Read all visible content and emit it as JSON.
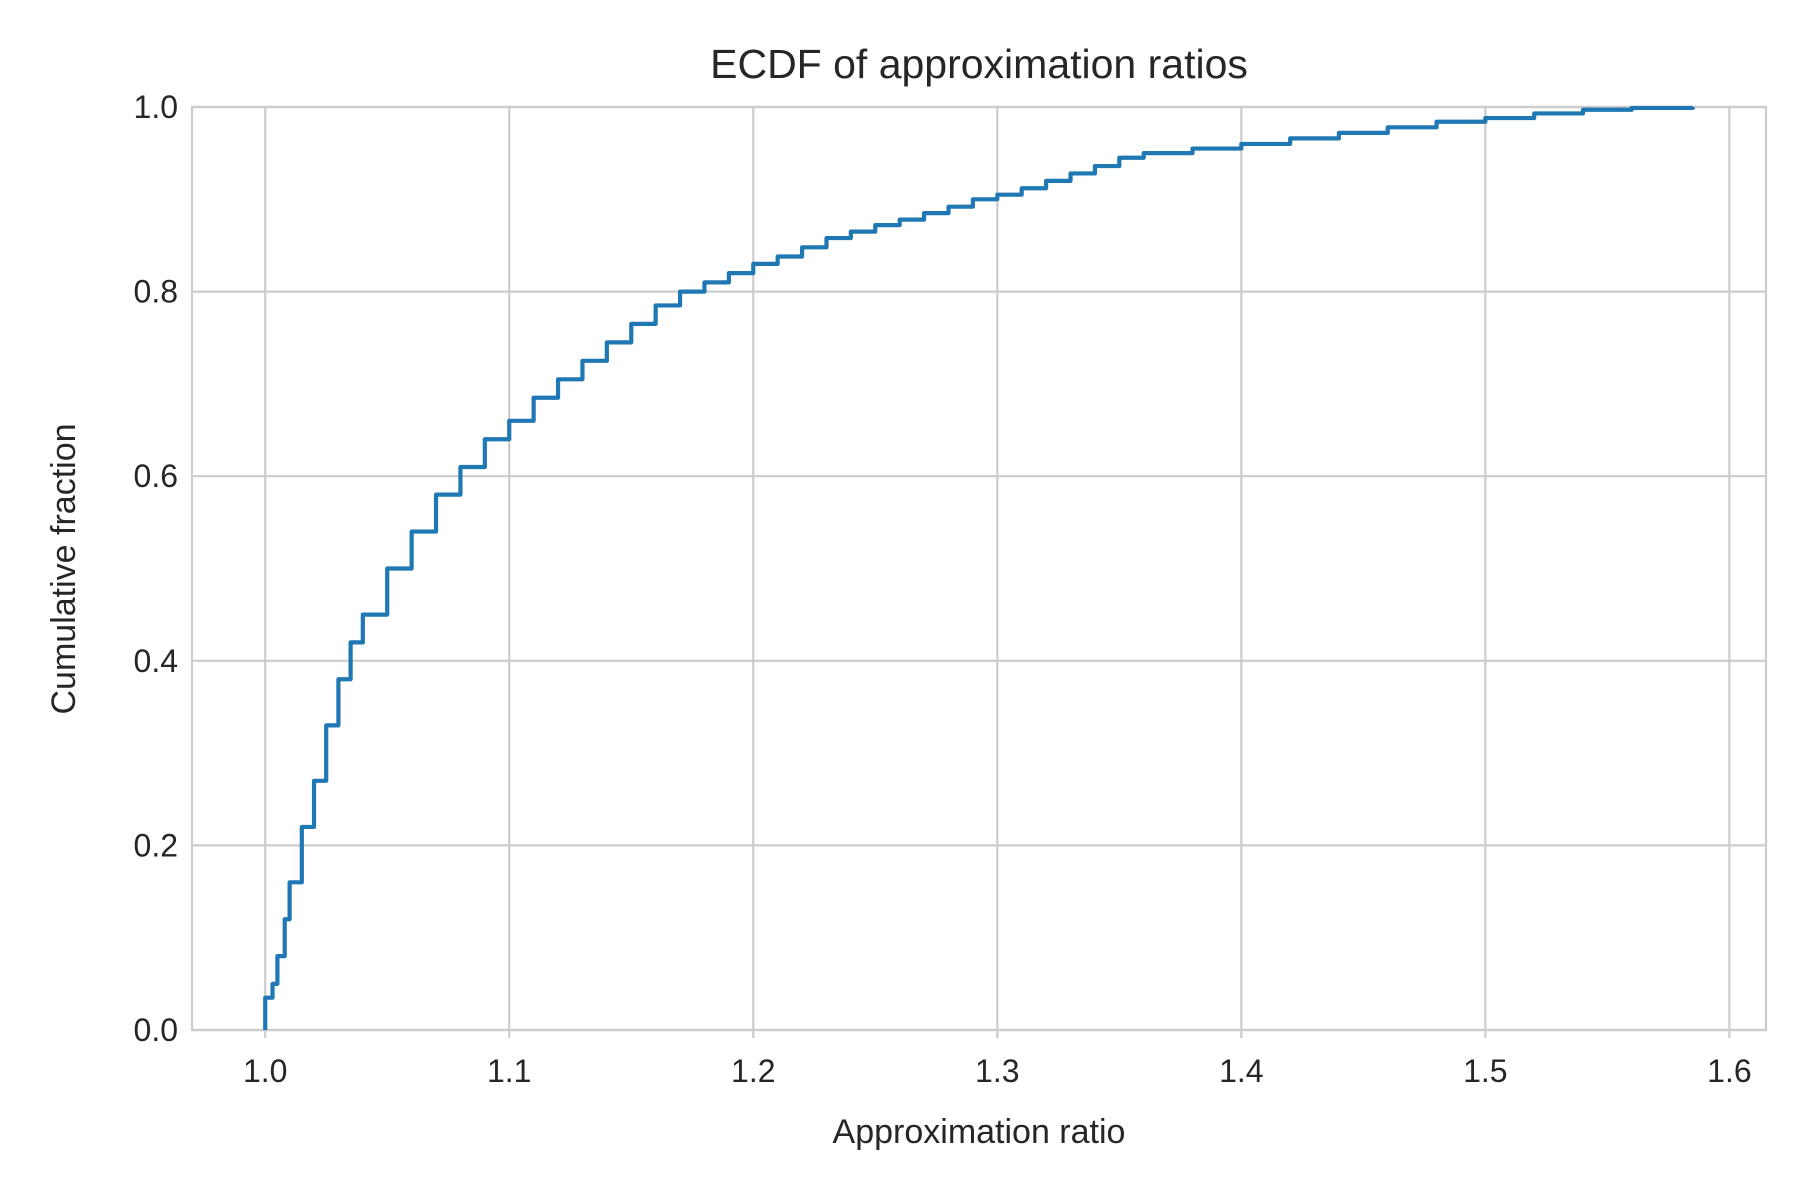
{
  "chart_data": {
    "type": "line",
    "step": true,
    "title": "ECDF of approximation ratios",
    "xlabel": "Approximation ratio",
    "ylabel": "Cumulative fraction",
    "xlim": [
      0.97,
      1.615
    ],
    "ylim": [
      0.0,
      1.0
    ],
    "xticks": [
      1.0,
      1.1,
      1.2,
      1.3,
      1.4,
      1.5,
      1.6
    ],
    "xtick_labels": [
      "1.0",
      "1.1",
      "1.2",
      "1.3",
      "1.4",
      "1.5",
      "1.6"
    ],
    "yticks": [
      0.0,
      0.2,
      0.4,
      0.6,
      0.8,
      1.0
    ],
    "ytick_labels": [
      "0.0",
      "0.2",
      "0.4",
      "0.6",
      "0.8",
      "1.0"
    ],
    "grid": true,
    "legend": "none",
    "colors": {
      "line": "#1f77b4",
      "grid": "#cccccc",
      "text": "#262626",
      "background": "#ffffff"
    },
    "series": [
      {
        "x": [
          1.0,
          1.0,
          1.003,
          1.005,
          1.008,
          1.01,
          1.015,
          1.02,
          1.025,
          1.03,
          1.035,
          1.04,
          1.05,
          1.06,
          1.07,
          1.08,
          1.09,
          1.1,
          1.11,
          1.12,
          1.13,
          1.14,
          1.15,
          1.16,
          1.17,
          1.18,
          1.19,
          1.2,
          1.21,
          1.22,
          1.23,
          1.24,
          1.25,
          1.26,
          1.27,
          1.28,
          1.29,
          1.3,
          1.31,
          1.32,
          1.33,
          1.34,
          1.35,
          1.36,
          1.38,
          1.4,
          1.42,
          1.44,
          1.46,
          1.48,
          1.5,
          1.52,
          1.54,
          1.56,
          1.585
        ],
        "y": [
          0.0,
          0.035,
          0.05,
          0.08,
          0.12,
          0.16,
          0.22,
          0.27,
          0.33,
          0.38,
          0.42,
          0.45,
          0.5,
          0.54,
          0.58,
          0.61,
          0.64,
          0.66,
          0.685,
          0.705,
          0.725,
          0.745,
          0.765,
          0.785,
          0.8,
          0.81,
          0.82,
          0.83,
          0.838,
          0.848,
          0.858,
          0.865,
          0.872,
          0.878,
          0.885,
          0.892,
          0.9,
          0.905,
          0.912,
          0.92,
          0.928,
          0.936,
          0.945,
          0.95,
          0.955,
          0.96,
          0.966,
          0.972,
          0.978,
          0.984,
          0.988,
          0.993,
          0.997,
          0.999,
          1.0
        ]
      }
    ]
  }
}
